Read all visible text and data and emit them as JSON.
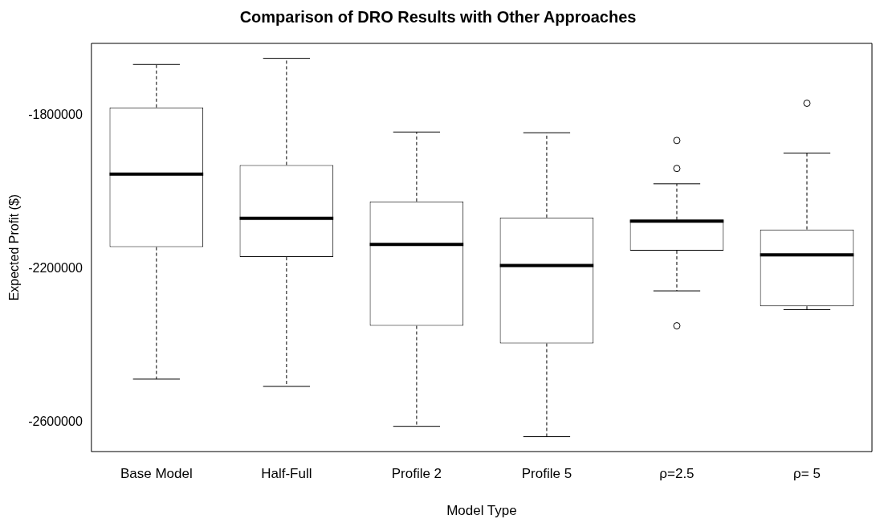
{
  "chart_data": {
    "type": "box",
    "title": "Comparison of DRO Results with Other Approaches",
    "xlabel": "Model Type",
    "ylabel": "Expected Profit ($)",
    "categories": [
      "Base Model",
      "Half-Full",
      "Profile 2",
      "Profile 5",
      "ρ=2.5",
      "ρ= 5"
    ],
    "boxes": [
      {
        "low": -2488000,
        "q1": -2144000,
        "median": -1954000,
        "q3": -1780000,
        "high": -1668000
      },
      {
        "low": -2507000,
        "q1": -2170000,
        "median": -2069000,
        "q3": -1930000,
        "high": -1652000
      },
      {
        "low": -2611000,
        "q1": -2349000,
        "median": -2137000,
        "q3": -2025000,
        "high": -1844000
      },
      {
        "low": -2638000,
        "q1": -2395000,
        "median": -2192000,
        "q3": -2067000,
        "high": -1846000
      },
      {
        "low": -2258000,
        "q1": -2153000,
        "median": -2076000,
        "q3": -2073000,
        "high": -1979000,
        "outliers": [
          -1866000,
          -1939000,
          -2349000
        ]
      },
      {
        "low": -2307000,
        "q1": -2298000,
        "median": -2164000,
        "q3": -2098000,
        "high": -1899000,
        "outliers": [
          -1769000
        ]
      }
    ],
    "color": "#000000",
    "ylim": [
      -2677000,
      -1613000
    ],
    "yticks": [
      -1800000,
      -2200000,
      -2600000
    ],
    "grid": false,
    "legend": false
  }
}
